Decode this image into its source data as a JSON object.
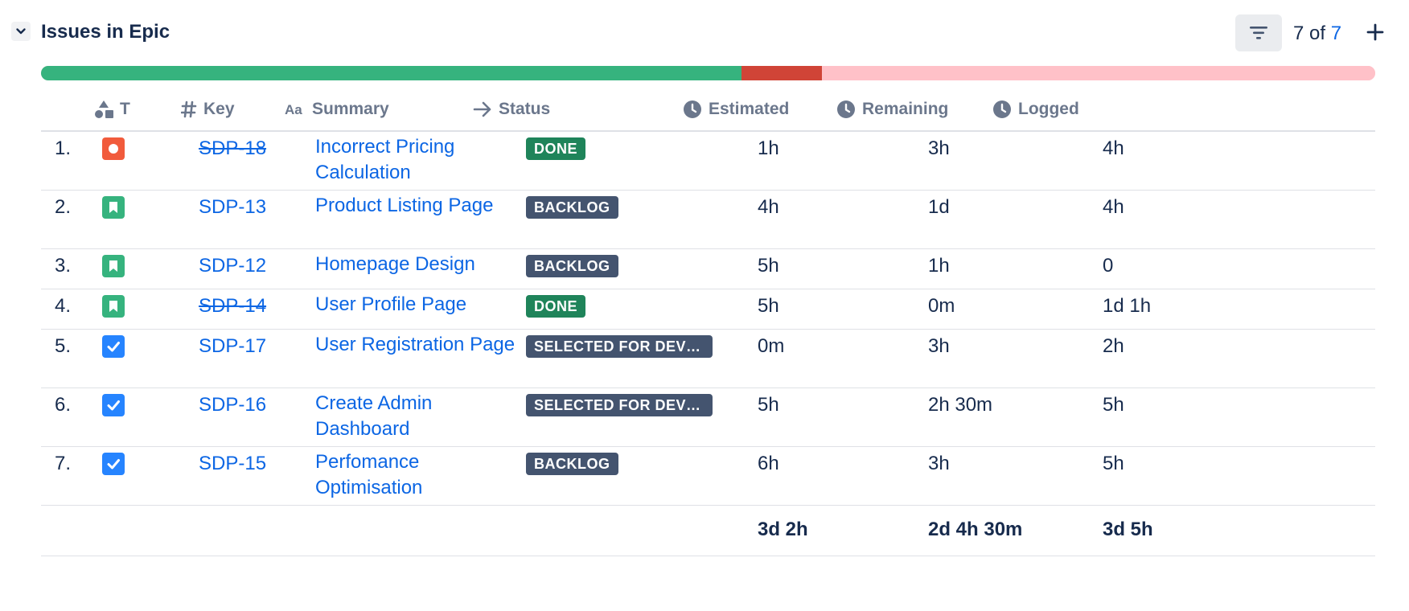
{
  "header": {
    "title": "Issues in Epic",
    "count_prefix": "7 of ",
    "count_total": "7"
  },
  "progress": {
    "done_fraction": 0.525,
    "overrun_fraction": 0.06,
    "remaining_fraction": 0.415,
    "colors": {
      "done": "#36b37e",
      "overrun": "#d04437",
      "remaining": "#ffc1c8"
    }
  },
  "columns": {
    "type": "T",
    "key": "Key",
    "summary": "Summary",
    "status": "Status",
    "estimated": "Estimated",
    "remaining": "Remaining",
    "logged": "Logged"
  },
  "issues": [
    {
      "num": "1.",
      "type": "bug-icon",
      "key": "SDP-18",
      "key_done": true,
      "summary": "Incorrect Pricing Calculation",
      "status": "DONE",
      "status_kind": "done",
      "estimated": "1h",
      "remaining": "3h",
      "logged": "4h"
    },
    {
      "num": "2.",
      "type": "story-icon",
      "key": "SDP-13",
      "key_done": false,
      "summary": "Product Listing Page",
      "status": "BACKLOG",
      "status_kind": "backlog",
      "estimated": "4h",
      "remaining": "1d",
      "logged": "4h"
    },
    {
      "num": "3.",
      "type": "story-icon",
      "key": "SDP-12",
      "key_done": false,
      "summary": "Homepage Design",
      "status": "BACKLOG",
      "status_kind": "backlog",
      "estimated": "5h",
      "remaining": "1h",
      "logged": "0"
    },
    {
      "num": "4.",
      "type": "story-icon",
      "key": "SDP-14",
      "key_done": true,
      "summary": "User Profile Page",
      "status": "DONE",
      "status_kind": "done",
      "estimated": "5h",
      "remaining": "0m",
      "logged": "1d 1h"
    },
    {
      "num": "5.",
      "type": "task-icon",
      "key": "SDP-17",
      "key_done": false,
      "summary": "User Registration Page",
      "status": "SELECTED FOR DEVE...",
      "status_kind": "backlog",
      "estimated": "0m",
      "remaining": "3h",
      "logged": "2h"
    },
    {
      "num": "6.",
      "type": "task-icon",
      "key": "SDP-16",
      "key_done": false,
      "summary": "Create Admin Dashboard",
      "status": "SELECTED FOR DEVE...",
      "status_kind": "backlog",
      "estimated": "5h",
      "remaining": "2h 30m",
      "logged": "5h"
    },
    {
      "num": "7.",
      "type": "task-icon",
      "key": "SDP-15",
      "key_done": false,
      "summary": "Perfomance Optimisation",
      "status": "BACKLOG",
      "status_kind": "backlog",
      "estimated": "6h",
      "remaining": "3h",
      "logged": "5h"
    }
  ],
  "totals": {
    "estimated": "3d 2h",
    "remaining": "2d 4h 30m",
    "logged": "3d 5h"
  },
  "icons": {
    "collapse": "chevron-down-icon",
    "filter": "filter-icon",
    "add": "plus-icon",
    "type_header": "shapes-icon",
    "key_header": "hash-icon",
    "summary_header": "text-icon",
    "status_header": "arrow-right-icon",
    "time_header": "clock-icon"
  }
}
